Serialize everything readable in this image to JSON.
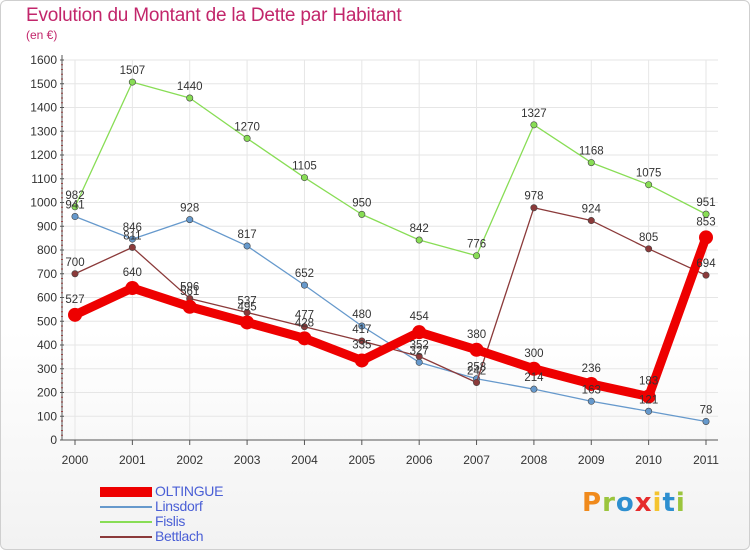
{
  "header": {
    "title": "Evolution du Montant de la Dette par Habitant",
    "unit": "(en €)"
  },
  "logo": {
    "text": "Proxiti",
    "letters": [
      {
        "ch": "P",
        "color": "#f08a1c"
      },
      {
        "ch": "r",
        "color": "#9bc53d"
      },
      {
        "ch": "o",
        "color": "#2d8fd0"
      },
      {
        "ch": "x",
        "color": "#e62b2b"
      },
      {
        "ch": "i",
        "color": "#f4c430"
      },
      {
        "ch": "t",
        "color": "#2d8fd0"
      },
      {
        "ch": "i",
        "color": "#9bc53d"
      }
    ]
  },
  "chart_data": {
    "type": "line",
    "title": "Evolution du Montant de la Dette par Habitant",
    "ylabel": "(en €)",
    "xlabel": "",
    "x": [
      "2000",
      "2001",
      "2002",
      "2003",
      "2004",
      "2005",
      "2006",
      "2007",
      "2008",
      "2009",
      "2010",
      "2011"
    ],
    "ylim": [
      0,
      1600
    ],
    "yticks": [
      0,
      100,
      200,
      300,
      400,
      500,
      600,
      700,
      800,
      900,
      1000,
      1100,
      1200,
      1300,
      1400,
      1500,
      1600
    ],
    "grid": true,
    "legend_position": "bottom-left",
    "series": [
      {
        "name": "OLTINGUE",
        "color": "#ee0000",
        "emphasis": true,
        "values": [
          527,
          640,
          561,
          495,
          428,
          335,
          454,
          380,
          300,
          236,
          183,
          853
        ],
        "labels": [
          "527",
          "640",
          "561",
          "495",
          "428",
          "335",
          "454",
          "380",
          "300",
          "236",
          "183",
          "853"
        ]
      },
      {
        "name": "Linsdorf",
        "color": "#6699cc",
        "emphasis": false,
        "values": [
          941,
          846,
          928,
          817,
          652,
          480,
          327,
          258,
          214,
          163,
          121,
          78
        ],
        "labels": [
          "941",
          "846",
          "928",
          "817",
          "652",
          "480",
          "327",
          "258",
          "214",
          "163",
          "121",
          "78"
        ]
      },
      {
        "name": "Fislis",
        "color": "#88dd55",
        "emphasis": false,
        "values": [
          982,
          1507,
          1440,
          1270,
          1105,
          950,
          842,
          776,
          1327,
          1168,
          1075,
          951
        ],
        "labels": [
          "982",
          "1507",
          "1440",
          "1270",
          "1105",
          "950",
          "842",
          "776",
          "1327",
          "1168",
          "1075",
          "951"
        ]
      },
      {
        "name": "Bettlach",
        "color": "#8b3a3a",
        "emphasis": false,
        "values": [
          700,
          811,
          596,
          537,
          477,
          417,
          352,
          242,
          978,
          924,
          805,
          694
        ],
        "labels": [
          "700",
          "811",
          "596",
          "537",
          "477",
          "417",
          "352",
          "242",
          "978",
          "924",
          "805",
          "694"
        ]
      }
    ]
  }
}
